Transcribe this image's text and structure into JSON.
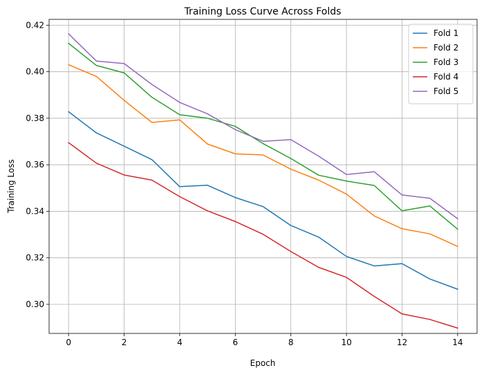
{
  "chart_data": {
    "type": "line",
    "title": "Training Loss Curve Across Folds",
    "xlabel": "Epoch",
    "ylabel": "Training Loss",
    "x": [
      0,
      1,
      2,
      3,
      4,
      5,
      6,
      7,
      8,
      9,
      10,
      11,
      12,
      13,
      14
    ],
    "xlim": [
      -0.7,
      14.7
    ],
    "ylim": [
      0.2875,
      0.4225
    ],
    "xticks": [
      0,
      2,
      4,
      6,
      8,
      10,
      12,
      14
    ],
    "yticks": [
      0.3,
      0.32,
      0.34,
      0.36,
      0.38,
      0.4,
      0.42
    ],
    "ytick_labels": [
      "0.30",
      "0.32",
      "0.34",
      "0.36",
      "0.38",
      "0.40",
      "0.42"
    ],
    "grid": true,
    "legend_position": "top-right",
    "series": [
      {
        "name": "Fold 1",
        "color": "#1f77b4",
        "values": [
          0.3828,
          0.3737,
          0.368,
          0.3622,
          0.3506,
          0.3512,
          0.3459,
          0.342,
          0.3339,
          0.3289,
          0.3206,
          0.3165,
          0.3175,
          0.3109,
          0.3065
        ]
      },
      {
        "name": "Fold 2",
        "color": "#ff7f0e",
        "values": [
          0.403,
          0.398,
          0.3877,
          0.3782,
          0.3793,
          0.3689,
          0.3647,
          0.3642,
          0.3581,
          0.3534,
          0.3474,
          0.338,
          0.3325,
          0.3303,
          0.3249
        ]
      },
      {
        "name": "Fold 3",
        "color": "#2ca02c",
        "values": [
          0.4122,
          0.4027,
          0.3995,
          0.389,
          0.3815,
          0.38,
          0.3765,
          0.3691,
          0.3627,
          0.3555,
          0.353,
          0.3511,
          0.3402,
          0.3423,
          0.3323
        ]
      },
      {
        "name": "Fold 4",
        "color": "#d62728",
        "values": [
          0.3695,
          0.3607,
          0.3556,
          0.3534,
          0.3463,
          0.3402,
          0.3356,
          0.3301,
          0.3227,
          0.3159,
          0.3116,
          0.3034,
          0.2959,
          0.2935,
          0.2898
        ]
      },
      {
        "name": "Fold 5",
        "color": "#9467bd",
        "values": [
          0.4163,
          0.4046,
          0.4035,
          0.3945,
          0.3868,
          0.3819,
          0.3751,
          0.3701,
          0.3708,
          0.3637,
          0.3558,
          0.357,
          0.347,
          0.3456,
          0.3368
        ]
      }
    ]
  },
  "colors": {
    "grid": "#b0b0b0",
    "axis": "#000000",
    "legend_border": "#cccccc"
  }
}
